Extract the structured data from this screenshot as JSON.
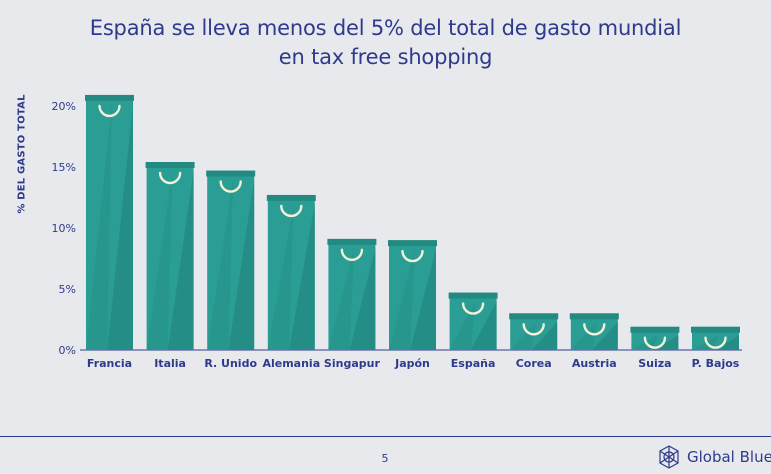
{
  "title_line1": "España se lleva menos del 5% del total de gasto mundial",
  "title_line2": "en tax free shopping",
  "page_number": "5",
  "brand": "Global Blue",
  "colors": {
    "bar": "#2a9e94",
    "bar_dark": "#1f8078",
    "bar_lid": "#238a82",
    "handle": "#f4f1d8",
    "text": "#2e3a8c",
    "background": "#e8e9ed"
  },
  "chart_data": {
    "type": "bar",
    "ylabel": "% DEL GASTO TOTAL",
    "categories": [
      "Francia",
      "Italia",
      "R. Unido",
      "Alemania",
      "Singapur",
      "Japón",
      "España",
      "Corea",
      "Austria",
      "Suiza",
      "P. Bajos"
    ],
    "values": [
      20.5,
      15.0,
      14.3,
      12.3,
      8.7,
      8.6,
      4.3,
      2.6,
      2.6,
      1.5,
      1.5
    ],
    "ylim": [
      0,
      20
    ],
    "yticks": [
      "0%",
      "5%",
      "10%",
      "15%",
      "20%"
    ],
    "grid": false,
    "legend": "none"
  }
}
